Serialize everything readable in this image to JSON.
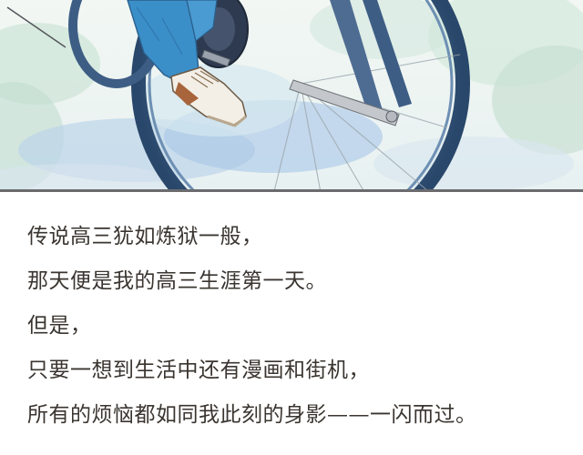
{
  "comic": {
    "narration": [
      "传说高三犹如炼狱一般，",
      "那天便是我的高三生涯第一天。",
      "但是，",
      "只要一想到生活中还有漫画和街机，",
      "所有的烦恼都如同我此刻的身影——一闪而过。"
    ]
  }
}
